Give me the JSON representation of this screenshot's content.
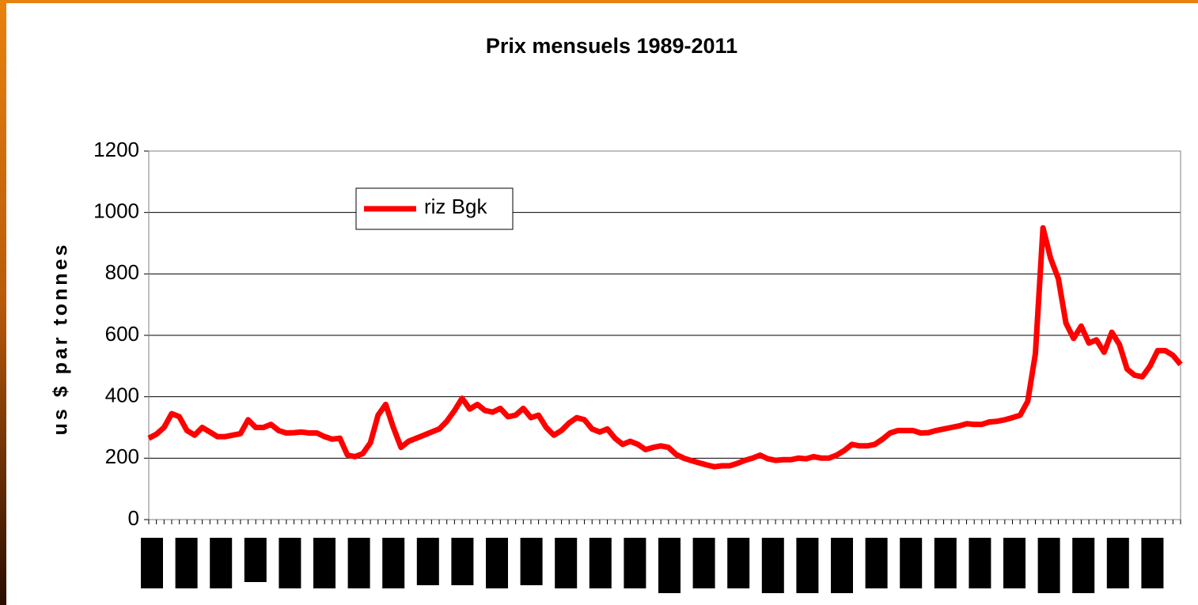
{
  "chart_data": {
    "type": "line",
    "title": "Prix mensuels 1989-2011",
    "ylabel": "us $ par tonnes",
    "categories": [
      null,
      null,
      null,
      null,
      null,
      null,
      null,
      null,
      null,
      null,
      null,
      null,
      null,
      null,
      null,
      null,
      null,
      null,
      null,
      null,
      null,
      null,
      null,
      null,
      null,
      null,
      null,
      null,
      null,
      null,
      null,
      null,
      null,
      null,
      null,
      null,
      null,
      null,
      null,
      null,
      null,
      null,
      null,
      null,
      null,
      null,
      null,
      null,
      null,
      null,
      null,
      null,
      null,
      null,
      null,
      null,
      null,
      null,
      null,
      null,
      null,
      null,
      null,
      null,
      null,
      null,
      null,
      null,
      null,
      null,
      null,
      null,
      null,
      null,
      null,
      null,
      null,
      null,
      null,
      null,
      null,
      null,
      null,
      null,
      null,
      null,
      null,
      null,
      null,
      null,
      null,
      null,
      null,
      null,
      null,
      null,
      null,
      null,
      null,
      null,
      null,
      null,
      null,
      null,
      null,
      null,
      null,
      null,
      null,
      null,
      null,
      null,
      null,
      null,
      null,
      null,
      null,
      null,
      null,
      null,
      null,
      null,
      null,
      null,
      null,
      null,
      null,
      null,
      null,
      null,
      null,
      null,
      null,
      null,
      null,
      null
    ],
    "series": [
      {
        "name": "riz Bgk",
        "color": "#ff0000",
        "values": [
          265,
          278,
          300,
          345,
          335,
          290,
          275,
          300,
          285,
          270,
          270,
          275,
          280,
          325,
          300,
          300,
          310,
          290,
          282,
          283,
          285,
          282,
          282,
          270,
          262,
          265,
          210,
          205,
          215,
          250,
          340,
          375,
          300,
          235,
          255,
          265,
          275,
          285,
          295,
          320,
          355,
          395,
          360,
          375,
          355,
          350,
          362,
          335,
          340,
          362,
          332,
          340,
          300,
          275,
          290,
          315,
          332,
          325,
          295,
          285,
          295,
          265,
          245,
          255,
          245,
          228,
          235,
          240,
          235,
          212,
          200,
          192,
          185,
          178,
          172,
          175,
          175,
          183,
          193,
          200,
          210,
          198,
          193,
          195,
          195,
          200,
          198,
          205,
          200,
          200,
          210,
          225,
          245,
          240,
          240,
          245,
          262,
          282,
          290,
          290,
          290,
          282,
          283,
          290,
          295,
          300,
          305,
          312,
          310,
          310,
          318,
          320,
          325,
          332,
          340,
          385,
          540,
          950,
          850,
          785,
          640,
          590,
          630,
          575,
          585,
          545,
          610,
          570,
          490,
          470,
          465,
          500,
          550,
          550,
          535,
          505
        ]
      }
    ],
    "ylim": [
      0,
      1200
    ],
    "yticks": [
      0,
      200,
      400,
      600,
      800,
      1000,
      1200
    ],
    "grid": true,
    "legend": "upper left"
  }
}
